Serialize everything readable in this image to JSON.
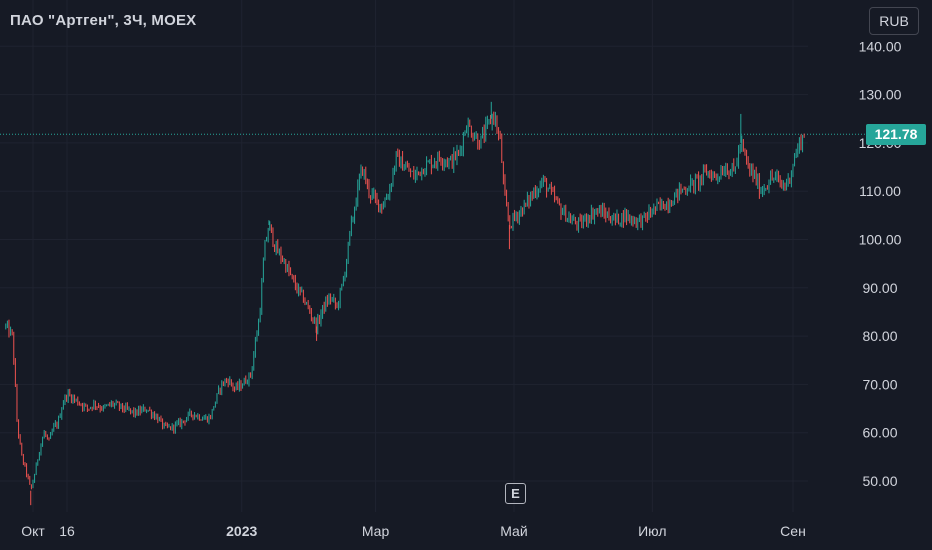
{
  "header": {
    "title": "ПАО \"Артген\", 3Ч, MOEX",
    "currency_button": "RUB"
  },
  "earnings_marker": {
    "label": "E"
  },
  "colors": {
    "background": "#161a25",
    "up": "#26a69a",
    "down": "#ef5350",
    "axis_text": "#d1d4dc",
    "price_line": "#26a69a"
  },
  "chart_data": {
    "type": "candlestick",
    "title": "ПАО \"Артген\", 3Ч, MOEX",
    "timeframe": "3Ч",
    "exchange": "MOEX",
    "currency": "RUB",
    "last_price": 121.78,
    "last_price_label": "121.78",
    "ylim": [
      44,
      146
    ],
    "y_ticks": [
      {
        "value": 50,
        "label": "50.00"
      },
      {
        "value": 60,
        "label": "60.00"
      },
      {
        "value": 70,
        "label": "70.00"
      },
      {
        "value": 80,
        "label": "80.00"
      },
      {
        "value": 90,
        "label": "90.00"
      },
      {
        "value": 100,
        "label": "100.00"
      },
      {
        "value": 110,
        "label": "110.00"
      },
      {
        "value": 120,
        "label": "120.00"
      },
      {
        "value": 130,
        "label": "130.00"
      },
      {
        "value": 140,
        "label": "140.00"
      }
    ],
    "x_ticks": [
      {
        "date": "2022-10-01",
        "label": "Окт",
        "bold": false
      },
      {
        "date": "2022-10-16",
        "label": "16",
        "bold": false
      },
      {
        "date": "2023-01-01",
        "label": "2023",
        "bold": true
      },
      {
        "date": "2023-03-01",
        "label": "Мар",
        "bold": false
      },
      {
        "date": "2023-05-01",
        "label": "Май",
        "bold": false
      },
      {
        "date": "2023-07-01",
        "label": "Июл",
        "bold": false
      },
      {
        "date": "2023-09-01",
        "label": "Сен",
        "bold": false
      }
    ],
    "price_path": [
      [
        "2022-09-19",
        82
      ],
      [
        "2022-09-22",
        80
      ],
      [
        "2022-09-24",
        62
      ],
      [
        "2022-09-26",
        55
      ],
      [
        "2022-09-28",
        52
      ],
      [
        "2022-09-30",
        48
      ],
      [
        "2022-10-02",
        52
      ],
      [
        "2022-10-04",
        57
      ],
      [
        "2022-10-06",
        60
      ],
      [
        "2022-10-08",
        58
      ],
      [
        "2022-10-10",
        61
      ],
      [
        "2022-10-12",
        62
      ],
      [
        "2022-10-14",
        66
      ],
      [
        "2022-10-16",
        68
      ],
      [
        "2022-10-19",
        67
      ],
      [
        "2022-10-22",
        66
      ],
      [
        "2022-10-25",
        65
      ],
      [
        "2022-10-28",
        66
      ],
      [
        "2022-11-01",
        65
      ],
      [
        "2022-11-05",
        66
      ],
      [
        "2022-11-10",
        65
      ],
      [
        "2022-11-15",
        64
      ],
      [
        "2022-11-20",
        65
      ],
      [
        "2022-11-25",
        63
      ],
      [
        "2022-11-28",
        61
      ],
      [
        "2022-12-01",
        61
      ],
      [
        "2022-12-05",
        62
      ],
      [
        "2022-12-10",
        64
      ],
      [
        "2022-12-15",
        63
      ],
      [
        "2022-12-18",
        63
      ],
      [
        "2022-12-20",
        66
      ],
      [
        "2022-12-23",
        70
      ],
      [
        "2022-12-26",
        71
      ],
      [
        "2022-12-29",
        69
      ],
      [
        "2023-01-01",
        70
      ],
      [
        "2023-01-05",
        72
      ],
      [
        "2023-01-09",
        85
      ],
      [
        "2023-01-11",
        98
      ],
      [
        "2023-01-13",
        103
      ],
      [
        "2023-01-16",
        98
      ],
      [
        "2023-01-19",
        96
      ],
      [
        "2023-01-22",
        93
      ],
      [
        "2023-01-25",
        90
      ],
      [
        "2023-01-28",
        88
      ],
      [
        "2023-01-31",
        85
      ],
      [
        "2023-02-03",
        82
      ],
      [
        "2023-02-06",
        86
      ],
      [
        "2023-02-09",
        88
      ],
      [
        "2023-02-12",
        86
      ],
      [
        "2023-02-15",
        92
      ],
      [
        "2023-02-18",
        102
      ],
      [
        "2023-02-21",
        110
      ],
      [
        "2023-02-23",
        115
      ],
      [
        "2023-02-26",
        110
      ],
      [
        "2023-03-01",
        108
      ],
      [
        "2023-03-04",
        107
      ],
      [
        "2023-03-07",
        110
      ],
      [
        "2023-03-10",
        117
      ],
      [
        "2023-03-14",
        115
      ],
      [
        "2023-03-18",
        113
      ],
      [
        "2023-03-22",
        115
      ],
      [
        "2023-03-26",
        116
      ],
      [
        "2023-03-30",
        117
      ],
      [
        "2023-04-03",
        116
      ],
      [
        "2023-04-07",
        118
      ],
      [
        "2023-04-10",
        124
      ],
      [
        "2023-04-13",
        122
      ],
      [
        "2023-04-16",
        120
      ],
      [
        "2023-04-19",
        123
      ],
      [
        "2023-04-22",
        126
      ],
      [
        "2023-04-25",
        120
      ],
      [
        "2023-04-27",
        108
      ],
      [
        "2023-04-29",
        103
      ],
      [
        "2023-05-02",
        105
      ],
      [
        "2023-05-06",
        107
      ],
      [
        "2023-05-10",
        110
      ],
      [
        "2023-05-14",
        112
      ],
      [
        "2023-05-18",
        109
      ],
      [
        "2023-05-22",
        106
      ],
      [
        "2023-05-26",
        104
      ],
      [
        "2023-05-30",
        103
      ],
      [
        "2023-06-03",
        105
      ],
      [
        "2023-06-07",
        106
      ],
      [
        "2023-06-11",
        105
      ],
      [
        "2023-06-15",
        104
      ],
      [
        "2023-06-19",
        105
      ],
      [
        "2023-06-23",
        104
      ],
      [
        "2023-06-27",
        104
      ],
      [
        "2023-07-01",
        106
      ],
      [
        "2023-07-05",
        107
      ],
      [
        "2023-07-09",
        108
      ],
      [
        "2023-07-13",
        110
      ],
      [
        "2023-07-17",
        111
      ],
      [
        "2023-07-21",
        112
      ],
      [
        "2023-07-25",
        114
      ],
      [
        "2023-07-29",
        113
      ],
      [
        "2023-08-02",
        115
      ],
      [
        "2023-08-06",
        114
      ],
      [
        "2023-08-09",
        120
      ],
      [
        "2023-08-12",
        115
      ],
      [
        "2023-08-15",
        113
      ],
      [
        "2023-08-18",
        110
      ],
      [
        "2023-08-21",
        112
      ],
      [
        "2023-08-24",
        113
      ],
      [
        "2023-08-27",
        111
      ],
      [
        "2023-08-30",
        112
      ],
      [
        "2023-09-01",
        116
      ],
      [
        "2023-09-04",
        120
      ],
      [
        "2023-09-06",
        121.78
      ]
    ],
    "wick_extremes": [
      {
        "date": "2022-09-30",
        "low": 45
      },
      {
        "date": "2023-01-13",
        "high": 104
      },
      {
        "date": "2023-02-03",
        "low": 79
      },
      {
        "date": "2023-04-21",
        "high": 128.5
      },
      {
        "date": "2023-04-29",
        "low": 98
      },
      {
        "date": "2023-08-09",
        "high": 126
      }
    ]
  }
}
